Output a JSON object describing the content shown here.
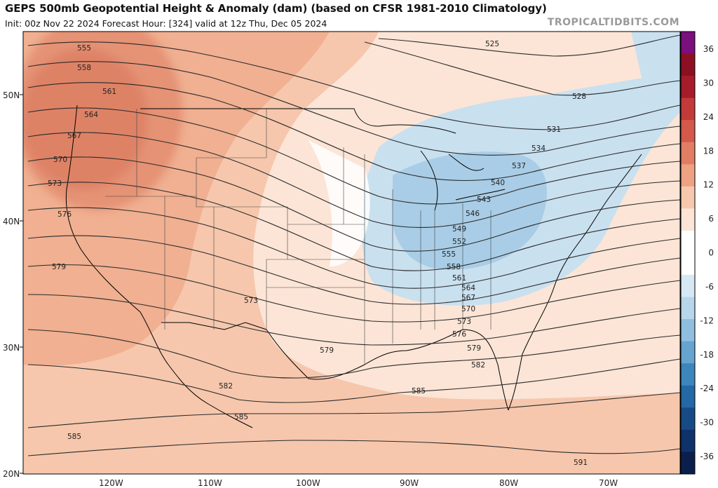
{
  "header": {
    "title": "GEPS 500mb Geopotential Height & Anomaly (dam) (based on CFSR 1981-2010 Climatology)",
    "subtitle": "Init: 00z Nov 22 2024   Forecast Hour: [324]   valid at 12z Thu, Dec 05 2024",
    "brand": "TROPICALTIDBITS.COM"
  },
  "map": {
    "lat_labels": [
      "50N",
      "40N",
      "30N",
      "20N"
    ],
    "lon_labels": [
      "120W",
      "110W",
      "100W",
      "90W",
      "80W",
      "70W"
    ],
    "contour_labels": [
      "525",
      "528",
      "531",
      "534",
      "537",
      "540",
      "543",
      "546",
      "549",
      "552",
      "555",
      "558",
      "561",
      "564",
      "567",
      "570",
      "573",
      "576",
      "579",
      "582",
      "585",
      "591",
      "555",
      "558",
      "561",
      "564",
      "567",
      "570",
      "573",
      "576",
      "579",
      "573",
      "579",
      "582",
      "585",
      "585"
    ],
    "land_color": "#000000"
  },
  "colorbar": {
    "ticks": [
      "36",
      "30",
      "24",
      "18",
      "12",
      "6",
      "0",
      "-6",
      "-12",
      "-18",
      "-24",
      "-30",
      "-36"
    ],
    "colors": [
      "#7b0f7b",
      "#8c0f24",
      "#a61c2a",
      "#c23a3a",
      "#d35a4a",
      "#e07e63",
      "#eea283",
      "#f7c8ae",
      "#fce5d6",
      "#ffffff",
      "#ffffff",
      "#d6e8f3",
      "#b7d5eb",
      "#8fbedf",
      "#66a3cf",
      "#3c86bb",
      "#2468a5",
      "#174b87",
      "#0f326a",
      "#0b1f4d"
    ]
  }
}
